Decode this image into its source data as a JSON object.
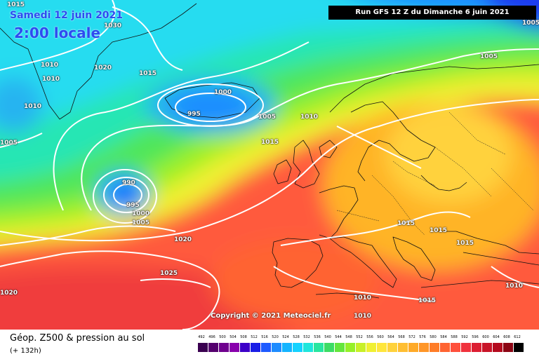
{
  "map": {
    "date_title": "Samedi 12 juin 2021",
    "time_title": "2:00 locale",
    "run_info": "Run GFS 12 Z du Dimanche 6 juin 2021",
    "copyright": "Copyright © 2021 Meteociel.fr",
    "isobar_labels": [
      "1015",
      "1030",
      "1020",
      "1010",
      "1010",
      "1015",
      "1000",
      "995",
      "1005",
      "1010",
      "1010",
      "1015",
      "1005",
      "990",
      "995",
      "1000",
      "1005",
      "1020",
      "1025",
      "1020",
      "1015",
      "1015",
      "1015",
      "1010",
      "1010",
      "1015",
      "1010",
      "1005",
      "1005"
    ]
  },
  "legend": {
    "title": "Géop. Z500 & pression au sol",
    "subtitle": "(+ 132h)",
    "scale_values": [
      "492",
      "496",
      "500",
      "504",
      "508",
      "512",
      "516",
      "520",
      "524",
      "528",
      "532",
      "536",
      "540",
      "544",
      "548",
      "552",
      "556",
      "560",
      "564",
      "568",
      "572",
      "576",
      "580",
      "584",
      "588",
      "592",
      "596",
      "600",
      "604",
      "608",
      "612"
    ],
    "scale_colors": [
      "#3a0050",
      "#55006e",
      "#6f008e",
      "#8800ac",
      "#3c00c8",
      "#1a1ee6",
      "#1e5aff",
      "#1e8cff",
      "#14b4ff",
      "#14d2ff",
      "#1ee6dc",
      "#28e6a0",
      "#3cdc64",
      "#64e63c",
      "#96f028",
      "#c8f028",
      "#f0f032",
      "#ffe63c",
      "#ffd23c",
      "#ffbe32",
      "#ffaa28",
      "#ff9628",
      "#ff7d28",
      "#ff6432",
      "#ff503c",
      "#f0323c",
      "#dc1e32",
      "#c81428",
      "#b40a1e",
      "#8c0514",
      "#000000"
    ]
  }
}
